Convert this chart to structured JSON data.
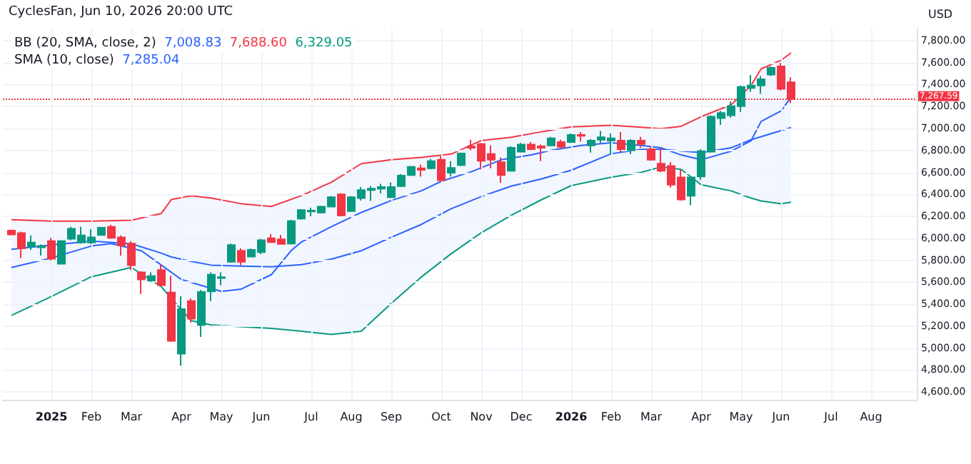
{
  "chart_data": {
    "type": "candlestick",
    "ylabel": "USD",
    "annotations": [
      "CyclesFan, Jun 10, 2026 20:00 UTC",
      "BB (20, SMA, close, 2)",
      "7,008.83",
      "7,688.60",
      "6,329.05",
      "SMA (10, close)",
      "7,285.04"
    ],
    "grid": true,
    "x": [
      "2024-12-09",
      "2024-12-16",
      "2024-12-23",
      "2024-12-30",
      "2025-01-06",
      "2025-01-13",
      "2025-01-20",
      "2025-01-27",
      "2025-02-03",
      "2025-02-10",
      "2025-02-17",
      "2025-02-24",
      "2025-03-03",
      "2025-03-10",
      "2025-03-17",
      "2025-03-24",
      "2025-03-31",
      "2025-04-07",
      "2025-04-14",
      "2025-04-21",
      "2025-04-28",
      "2025-05-05",
      "2025-05-12",
      "2025-05-19",
      "2025-05-26",
      "2025-06-02",
      "2025-06-09",
      "2025-06-16",
      "2025-06-23",
      "2025-06-30",
      "2025-07-07",
      "2025-07-14",
      "2025-07-21",
      "2025-07-28",
      "2025-08-04",
      "2025-08-11",
      "2025-08-18",
      "2025-08-25",
      "2025-09-01",
      "2025-09-08",
      "2025-09-15",
      "2025-09-22",
      "2025-09-29",
      "2025-10-06",
      "2025-10-13",
      "2025-10-20",
      "2025-10-27",
      "2025-11-03",
      "2025-11-10",
      "2025-11-17",
      "2025-11-24",
      "2025-12-01",
      "2025-12-08",
      "2025-12-15",
      "2025-12-22",
      "2025-12-29",
      "2026-01-05",
      "2026-01-12",
      "2026-01-19",
      "2026-01-26",
      "2026-02-02",
      "2026-02-09",
      "2026-02-16",
      "2026-02-23",
      "2026-03-02",
      "2026-03-09",
      "2026-03-16",
      "2026-03-23",
      "2026-03-30",
      "2026-04-06",
      "2026-04-13",
      "2026-04-20",
      "2026-04-27",
      "2026-05-04",
      "2026-05-11",
      "2026-05-18",
      "2026-05-25",
      "2026-06-01",
      "2026-06-08"
    ],
    "ohlc": [
      [
        6070,
        6078,
        6026,
        6035
      ],
      [
        6048,
        6061,
        5821,
        5908
      ],
      [
        5926,
        6026,
        5895,
        5961
      ],
      [
        5917,
        5943,
        5843,
        5930
      ],
      [
        5974,
        6004,
        5799,
        5813
      ],
      [
        5769,
        5983,
        5765,
        5974
      ],
      [
        5996,
        6105,
        5983,
        6087
      ],
      [
        5961,
        6105,
        5952,
        6026
      ],
      [
        5961,
        6083,
        5948,
        6009
      ],
      [
        6030,
        6105,
        6026,
        6096
      ],
      [
        6105,
        6122,
        5996,
        6004
      ],
      [
        6009,
        6026,
        5843,
        5935
      ],
      [
        5952,
        5974,
        5712,
        5756
      ],
      [
        5690,
        5700,
        5494,
        5625
      ],
      [
        5616,
        5690,
        5603,
        5656
      ],
      [
        5712,
        5764,
        5560,
        5573
      ],
      [
        5507,
        5660,
        5058,
        5067
      ],
      [
        4949,
        5472,
        4840,
        5355
      ],
      [
        5429,
        5451,
        5233,
        5267
      ],
      [
        5211,
        5529,
        5102,
        5512
      ],
      [
        5516,
        5690,
        5429,
        5669
      ],
      [
        5639,
        5690,
        5573,
        5647
      ],
      [
        5786,
        5952,
        5778,
        5939
      ],
      [
        5887,
        5908,
        5756,
        5786
      ],
      [
        5834,
        5908,
        5830,
        5895
      ],
      [
        5874,
        5996,
        5856,
        5983
      ],
      [
        6000,
        6039,
        5961,
        5965
      ],
      [
        5991,
        6030,
        5943,
        5948
      ],
      [
        5952,
        6170,
        5943,
        6157
      ],
      [
        6179,
        6266,
        6170,
        6257
      ],
      [
        6244,
        6279,
        6201,
        6253
      ],
      [
        6235,
        6296,
        6227,
        6288
      ],
      [
        6288,
        6384,
        6283,
        6375
      ],
      [
        6401,
        6410,
        6201,
        6209
      ],
      [
        6248,
        6384,
        6244,
        6375
      ],
      [
        6366,
        6467,
        6344,
        6440
      ],
      [
        6440,
        6475,
        6340,
        6453
      ],
      [
        6453,
        6497,
        6410,
        6467
      ],
      [
        6375,
        6510,
        6366,
        6467
      ],
      [
        6475,
        6584,
        6467,
        6571
      ],
      [
        6576,
        6658,
        6567,
        6650
      ],
      [
        6637,
        6671,
        6562,
        6623
      ],
      [
        6637,
        6724,
        6628,
        6702
      ],
      [
        6715,
        6746,
        6519,
        6528
      ],
      [
        6597,
        6702,
        6562,
        6641
      ],
      [
        6667,
        6780,
        6658,
        6772
      ],
      [
        6837,
        6898,
        6802,
        6824
      ],
      [
        6859,
        6868,
        6628,
        6706
      ],
      [
        6767,
        6846,
        6637,
        6715
      ],
      [
        6693,
        6737,
        6506,
        6576
      ],
      [
        6615,
        6837,
        6606,
        6824
      ],
      [
        6789,
        6868,
        6780,
        6854
      ],
      [
        6854,
        6876,
        6802,
        6811
      ],
      [
        6837,
        6854,
        6702,
        6824
      ],
      [
        6846,
        6924,
        6837,
        6911
      ],
      [
        6876,
        6898,
        6815,
        6833
      ],
      [
        6876,
        6955,
        6868,
        6942
      ],
      [
        6942,
        6968,
        6881,
        6933
      ],
      [
        6846,
        6902,
        6780,
        6889
      ],
      [
        6898,
        6977,
        6868,
        6920
      ],
      [
        6889,
        6955,
        6767,
        6911
      ],
      [
        6889,
        6968,
        6780,
        6811
      ],
      [
        6802,
        6902,
        6767,
        6889
      ],
      [
        6889,
        6924,
        6824,
        6859
      ],
      [
        6811,
        6837,
        6706,
        6715
      ],
      [
        6680,
        6824,
        6602,
        6615
      ],
      [
        6658,
        6693,
        6462,
        6488
      ],
      [
        6554,
        6628,
        6344,
        6353
      ],
      [
        6388,
        6562,
        6301,
        6554
      ],
      [
        6563,
        6811,
        6532,
        6793
      ],
      [
        6789,
        7120,
        6780,
        7107
      ],
      [
        7094,
        7160,
        7033,
        7142
      ],
      [
        7120,
        7247,
        7099,
        7203
      ],
      [
        7203,
        7391,
        7151,
        7378
      ],
      [
        7369,
        7487,
        7334,
        7391
      ],
      [
        7391,
        7478,
        7317,
        7448
      ],
      [
        7491,
        7565,
        7478,
        7552
      ],
      [
        7565,
        7596,
        7347,
        7360
      ],
      [
        7421,
        7465,
        7230,
        7267.59
      ]
    ],
    "series": [
      {
        "type": "line",
        "color": "#2962ff",
        "x": [
          "2024-12-09",
          "2025-01-06",
          "2025-02-03",
          "2025-03-03",
          "2025-03-24",
          "2025-03-31",
          "2025-04-14",
          "2025-04-28",
          "2025-05-19",
          "2025-06-09",
          "2025-06-30",
          "2025-07-21",
          "2025-08-11",
          "2025-09-01",
          "2025-09-22",
          "2025-10-13",
          "2025-11-03",
          "2025-11-24",
          "2025-12-15",
          "2026-01-05",
          "2026-02-02",
          "2026-02-23",
          "2026-03-09",
          "2026-03-23",
          "2026-04-06",
          "2026-04-27",
          "2026-05-11",
          "2026-05-18",
          "2026-06-01",
          "2026-06-08"
        ],
        "values": [
          5900,
          5939,
          5974,
          5950,
          5865,
          5830,
          5790,
          5756,
          5747,
          5740,
          5760,
          5810,
          5887,
          6009,
          6126,
          6270,
          6380,
          6475,
          6540,
          6620,
          6770,
          6810,
          6811,
          6795,
          6780,
          6824,
          6898,
          6925,
          6980,
          7008.83
        ],
        "upper": [
          6170,
          6157,
          6157,
          6165,
          6227,
          6353,
          6388,
          6366,
          6315,
          6290,
          6388,
          6510,
          6680,
          6715,
          6737,
          6767,
          6890,
          6920,
          6970,
          7015,
          7029,
          7011,
          6998,
          7020,
          7107,
          7216,
          7391,
          7543,
          7622,
          7688.6
        ],
        "lower": [
          5298,
          5470,
          5650,
          5734,
          5560,
          5450,
          5250,
          5211,
          5195,
          5180,
          5154,
          5124,
          5154,
          5407,
          5647,
          5860,
          6050,
          6210,
          6350,
          6480,
          6556,
          6600,
          6650,
          6628,
          6488,
          6432,
          6366,
          6340,
          6314,
          6329.05
        ]
      },
      {
        "type": "line",
        "color": "#f23645",
        "x": [
          "2024-12-09",
          "2025-01-06",
          "2025-02-03",
          "2025-03-03",
          "2025-03-24",
          "2025-03-31",
          "2025-04-14",
          "2025-04-28",
          "2025-05-19",
          "2025-06-09",
          "2025-06-30",
          "2025-07-21",
          "2025-08-11",
          "2025-09-01",
          "2025-09-22",
          "2025-10-13",
          "2025-11-03",
          "2025-11-24",
          "2025-12-15",
          "2026-01-05",
          "2026-02-02",
          "2026-02-23",
          "2026-03-09",
          "2026-03-23",
          "2026-04-06",
          "2026-04-27",
          "2026-05-11",
          "2026-05-18",
          "2026-06-01",
          "2026-06-08"
        ],
        "values": [
          6170,
          6157,
          6157,
          6165,
          6227,
          6353,
          6388,
          6366,
          6315,
          6290,
          6388,
          6510,
          6680,
          6715,
          6737,
          6767,
          6890,
          6920,
          6970,
          7015,
          7029,
          7011,
          6998,
          7020,
          7107,
          7216,
          7391,
          7543,
          7622,
          7688.6
        ]
      },
      {
        "type": "line",
        "color": "#089981",
        "x": [
          "2024-12-09",
          "2025-01-06",
          "2025-02-03",
          "2025-03-03",
          "2025-03-24",
          "2025-03-31",
          "2025-04-14",
          "2025-04-28",
          "2025-05-19",
          "2025-06-09",
          "2025-06-30",
          "2025-07-21",
          "2025-08-11",
          "2025-09-01",
          "2025-09-22",
          "2025-10-13",
          "2025-11-03",
          "2025-11-24",
          "2025-12-15",
          "2026-01-05",
          "2026-02-02",
          "2026-02-23",
          "2026-03-09",
          "2026-03-23",
          "2026-04-06",
          "2026-04-27",
          "2026-05-11",
          "2026-05-18",
          "2026-06-01",
          "2026-06-08"
        ],
        "values": [
          5298,
          5470,
          5650,
          5734,
          5560,
          5450,
          5250,
          5211,
          5195,
          5180,
          5154,
          5124,
          5154,
          5407,
          5647,
          5860,
          6050,
          6210,
          6350,
          6480,
          6556,
          6600,
          6650,
          6628,
          6488,
          6432,
          6366,
          6340,
          6314,
          6329.05
        ]
      },
      {
        "type": "line",
        "color": "#2962ff",
        "x": [
          "2024-12-09",
          "2025-01-06",
          "2025-02-03",
          "2025-02-17",
          "2025-03-10",
          "2025-03-24",
          "2025-04-07",
          "2025-05-05",
          "2025-05-19",
          "2025-06-09",
          "2025-06-23",
          "2025-06-30",
          "2025-07-21",
          "2025-08-11",
          "2025-09-01",
          "2025-09-22",
          "2025-10-06",
          "2025-10-27",
          "2025-11-17",
          "2025-12-08",
          "2025-12-22",
          "2026-01-12",
          "2026-02-02",
          "2026-02-23",
          "2026-03-09",
          "2026-03-23",
          "2026-04-06",
          "2026-04-27",
          "2026-05-11",
          "2026-05-18",
          "2026-06-01",
          "2026-06-08"
        ],
        "values": [
          5734,
          5821,
          5930,
          5952,
          5887,
          5756,
          5625,
          5516,
          5538,
          5669,
          5890,
          5965,
          6105,
          6235,
          6344,
          6432,
          6519,
          6606,
          6715,
          6759,
          6802,
          6846,
          6870,
          6846,
          6824,
          6759,
          6715,
          6793,
          6889,
          7064,
          7160,
          7285.04
        ]
      }
    ],
    "ref_lines": [
      {
        "axis": "y",
        "value": 7267.59,
        "label": "7,267.59",
        "color": "#f23645"
      }
    ],
    "xlim": [
      "2024-12-03",
      "2026-09-04"
    ],
    "xticks": [
      {
        "value": "2025-01-06",
        "label": "2025"
      },
      {
        "value": "2025-02-03",
        "label": "Feb"
      },
      {
        "value": "2025-03-03",
        "label": "Mar"
      },
      {
        "value": "2025-04-07",
        "label": "Apr"
      },
      {
        "value": "2025-05-05",
        "label": "May"
      },
      {
        "value": "2025-06-02",
        "label": "Jun"
      },
      {
        "value": "2025-07-07",
        "label": "Jul"
      },
      {
        "value": "2025-08-04",
        "label": "Aug"
      },
      {
        "value": "2025-09-01",
        "label": "Sep"
      },
      {
        "value": "2025-10-06",
        "label": "Oct"
      },
      {
        "value": "2025-11-03",
        "label": "Nov"
      },
      {
        "value": "2025-12-01",
        "label": "Dec"
      },
      {
        "value": "2026-01-05",
        "label": "2026"
      },
      {
        "value": "2026-02-02",
        "label": "Feb"
      },
      {
        "value": "2026-03-02",
        "label": "Mar"
      },
      {
        "value": "2026-04-06",
        "label": "Apr"
      },
      {
        "value": "2026-05-04",
        "label": "May"
      },
      {
        "value": "2026-06-01",
        "label": "Jun"
      },
      {
        "value": "2026-07-06",
        "label": "Jul"
      },
      {
        "value": "2026-08-03",
        "label": "Aug"
      }
    ],
    "ylim": [
      4530,
      7910
    ],
    "yticks": [
      {
        "value": 4600,
        "label": "4,600.00"
      },
      {
        "value": 4800,
        "label": "4,800.00"
      },
      {
        "value": 5000,
        "label": "5,000.00"
      },
      {
        "value": 5200,
        "label": "5,200.00"
      },
      {
        "value": 5400,
        "label": "5,400.00"
      },
      {
        "value": 5600,
        "label": "5,600.00"
      },
      {
        "value": 5800,
        "label": "5,800.00"
      },
      {
        "value": 6000,
        "label": "6,000.00"
      },
      {
        "value": 6200,
        "label": "6,200.00"
      },
      {
        "value": 6400,
        "label": "6,400.00"
      },
      {
        "value": 6600,
        "label": "6,600.00"
      },
      {
        "value": 6800,
        "label": "6,800.00"
      },
      {
        "value": 7000,
        "label": "7,000.00"
      },
      {
        "value": 7200,
        "label": "7,200.00"
      },
      {
        "value": 7400,
        "label": "7,400.00"
      },
      {
        "value": 7600,
        "label": "7,600.00"
      },
      {
        "value": 7800,
        "label": "7,800.00"
      }
    ]
  }
}
